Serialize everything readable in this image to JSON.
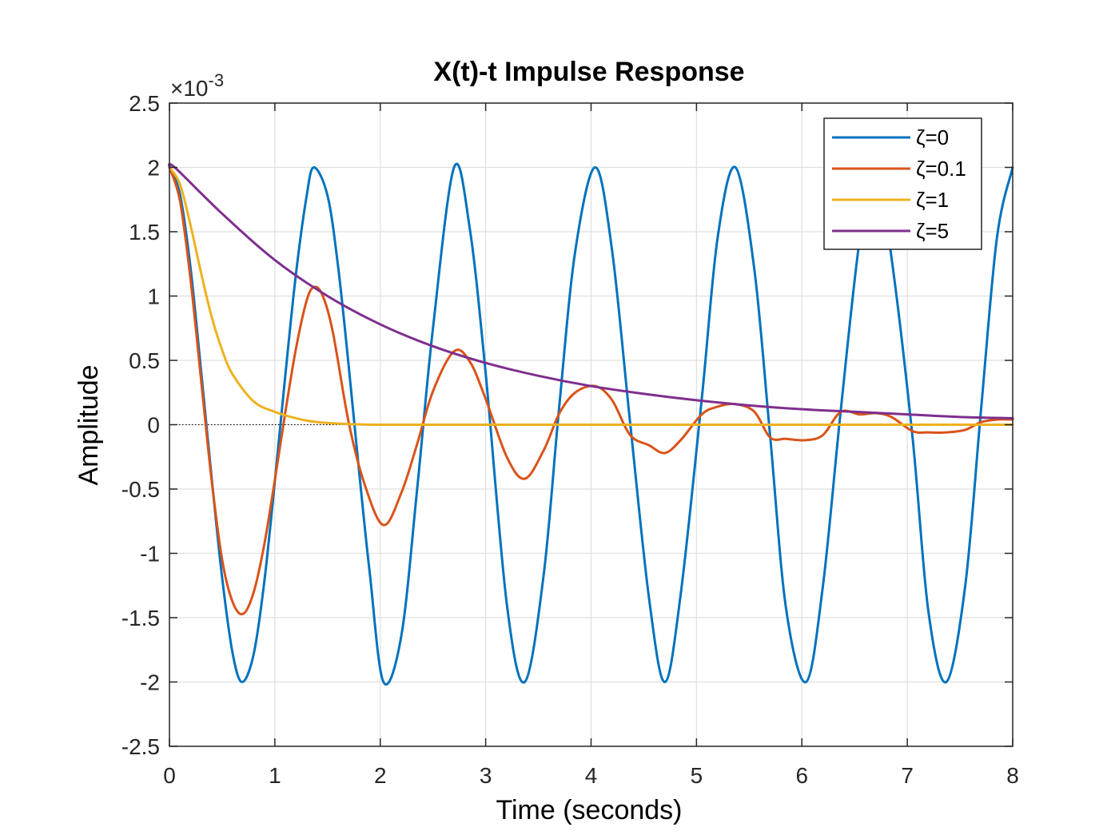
{
  "chart_data": {
    "type": "line",
    "title": "X(t)-t Impulse Response",
    "xlabel": "Time (seconds)",
    "ylabel": "Amplitude",
    "xlim": [
      0,
      8
    ],
    "ylim": [
      -0.0025,
      0.0025
    ],
    "x_ticks": [
      "0",
      "1",
      "2",
      "3",
      "4",
      "5",
      "6",
      "7",
      "8"
    ],
    "y_ticks": [
      "-2.5",
      "-2",
      "-1.5",
      "-1",
      "-0.5",
      "0",
      "0.5",
      "1",
      "1.5",
      "2",
      "2.5"
    ],
    "y_exponent": {
      "base": "×10",
      "power": "-3"
    },
    "grid": true,
    "legend_position": "top-right",
    "zero_line": "dotted",
    "series": [
      {
        "name": "ζ=0",
        "color": "#0072BD",
        "x": [
          0,
          0.1,
          0.2,
          0.3,
          0.4,
          0.5,
          0.6,
          0.69,
          0.8,
          0.9,
          1.0,
          1.1,
          1.2,
          1.3,
          1.37,
          1.5,
          1.6,
          1.7,
          1.8,
          1.9,
          2.03,
          2.2,
          2.35,
          2.5,
          2.7,
          2.85,
          3.0,
          3.2,
          3.37,
          3.55,
          3.7,
          3.85,
          4.04,
          4.2,
          4.37,
          4.55,
          4.7,
          4.85,
          5.05,
          5.2,
          5.37,
          5.55,
          5.7,
          5.85,
          6.04,
          6.2,
          6.37,
          6.55,
          6.7,
          6.85,
          7.05,
          7.2,
          7.37,
          7.55,
          7.7,
          7.85,
          8.0
        ],
        "y": [
          0.002,
          0.00179,
          0.00122,
          0.00042,
          -0.00041,
          -0.00119,
          -0.00178,
          -0.002,
          -0.00178,
          -0.00122,
          -0.00044,
          0.00039,
          0.00117,
          0.00177,
          0.002,
          0.00178,
          0.00123,
          0.00046,
          -0.00037,
          -0.00115,
          -0.002,
          -0.00164,
          -0.0005,
          0.00075,
          0.002,
          0.00152,
          0.0004,
          -0.00139,
          -0.002,
          -0.00117,
          0.00016,
          0.00135,
          0.002,
          0.00135,
          2e-05,
          -0.00135,
          -0.002,
          -0.00132,
          0.0002,
          0.00145,
          0.002,
          0.0012,
          -0.0001,
          -0.00143,
          -0.002,
          -0.00125,
          0.00012,
          0.00145,
          0.002,
          0.0013,
          -0.0001,
          -0.00145,
          -0.002,
          -0.00125,
          0.00012,
          0.00145,
          0.002
        ]
      },
      {
        "name": "ζ=0.1",
        "color": "#D95319",
        "x": [
          0,
          0.1,
          0.2,
          0.3,
          0.4,
          0.5,
          0.6,
          0.7,
          0.8,
          0.9,
          1.0,
          1.1,
          1.2,
          1.3,
          1.37,
          1.45,
          1.55,
          1.7,
          1.85,
          2.03,
          2.2,
          2.35,
          2.5,
          2.7,
          2.85,
          3.0,
          3.2,
          3.37,
          3.55,
          3.7,
          3.85,
          4.04,
          4.2,
          4.37,
          4.55,
          4.7,
          4.85,
          5.05,
          5.2,
          5.37,
          5.55,
          5.7,
          5.85,
          6.04,
          6.2,
          6.37,
          6.55,
          6.7,
          6.85,
          7.05,
          7.2,
          7.37,
          7.55,
          7.7,
          7.85,
          8.0
        ],
        "y": [
          0.002,
          0.00174,
          0.00113,
          0.00035,
          -0.00043,
          -0.00105,
          -0.00138,
          -0.00147,
          -0.0013,
          -0.00093,
          -0.00043,
          0.0001,
          0.00059,
          0.00096,
          0.00107,
          0.00101,
          0.00072,
          2e-05,
          -0.00046,
          -0.00078,
          -0.00053,
          -0.00015,
          0.00026,
          0.00057,
          0.00049,
          0.0002,
          -0.00025,
          -0.00042,
          -0.0002,
          9e-05,
          0.00025,
          0.0003,
          0.00019,
          -8e-05,
          -0.00016,
          -0.00022,
          -0.00012,
          8e-05,
          0.00014,
          0.00016,
          0.0001,
          -0.0001,
          -0.00011,
          -0.00012,
          -8e-05,
          0.0001,
          8e-05,
          9e-05,
          6e-05,
          -5e-05,
          -6e-05,
          -6e-05,
          -4e-05,
          2e-05,
          4e-05,
          4e-05
        ]
      },
      {
        "name": "ζ=1",
        "color": "#EDB120",
        "x": [
          0,
          0.1,
          0.2,
          0.3,
          0.4,
          0.5,
          0.6,
          0.8,
          1.0,
          1.2,
          1.4,
          1.7,
          2.0,
          2.5,
          3.0,
          4.0,
          5.0,
          6.0,
          7.0,
          8.0
        ],
        "y": [
          0.002,
          0.00187,
          0.00155,
          0.00118,
          0.00084,
          0.00058,
          0.00039,
          0.00018,
          0.0001,
          5e-05,
          2e-05,
          5e-06,
          0.0,
          0.0,
          0.0,
          0.0,
          0.0,
          0.0,
          0.0,
          0.0
        ]
      },
      {
        "name": "ζ=5",
        "color": "#7E2F8E",
        "x": [
          0,
          0.05,
          0.5,
          1.0,
          1.5,
          2.0,
          2.5,
          3.0,
          3.5,
          4.0,
          4.5,
          5.0,
          5.5,
          6.0,
          6.5,
          7.0,
          7.5,
          8.0
        ],
        "y": [
          0.002,
          0.002,
          0.00164,
          0.00128,
          0.001,
          0.00078,
          0.00061,
          0.00048,
          0.00038,
          0.0003,
          0.00024,
          0.00019,
          0.00015,
          0.00012,
          0.0001,
          8e-05,
          6e-05,
          5e-05
        ]
      }
    ]
  }
}
